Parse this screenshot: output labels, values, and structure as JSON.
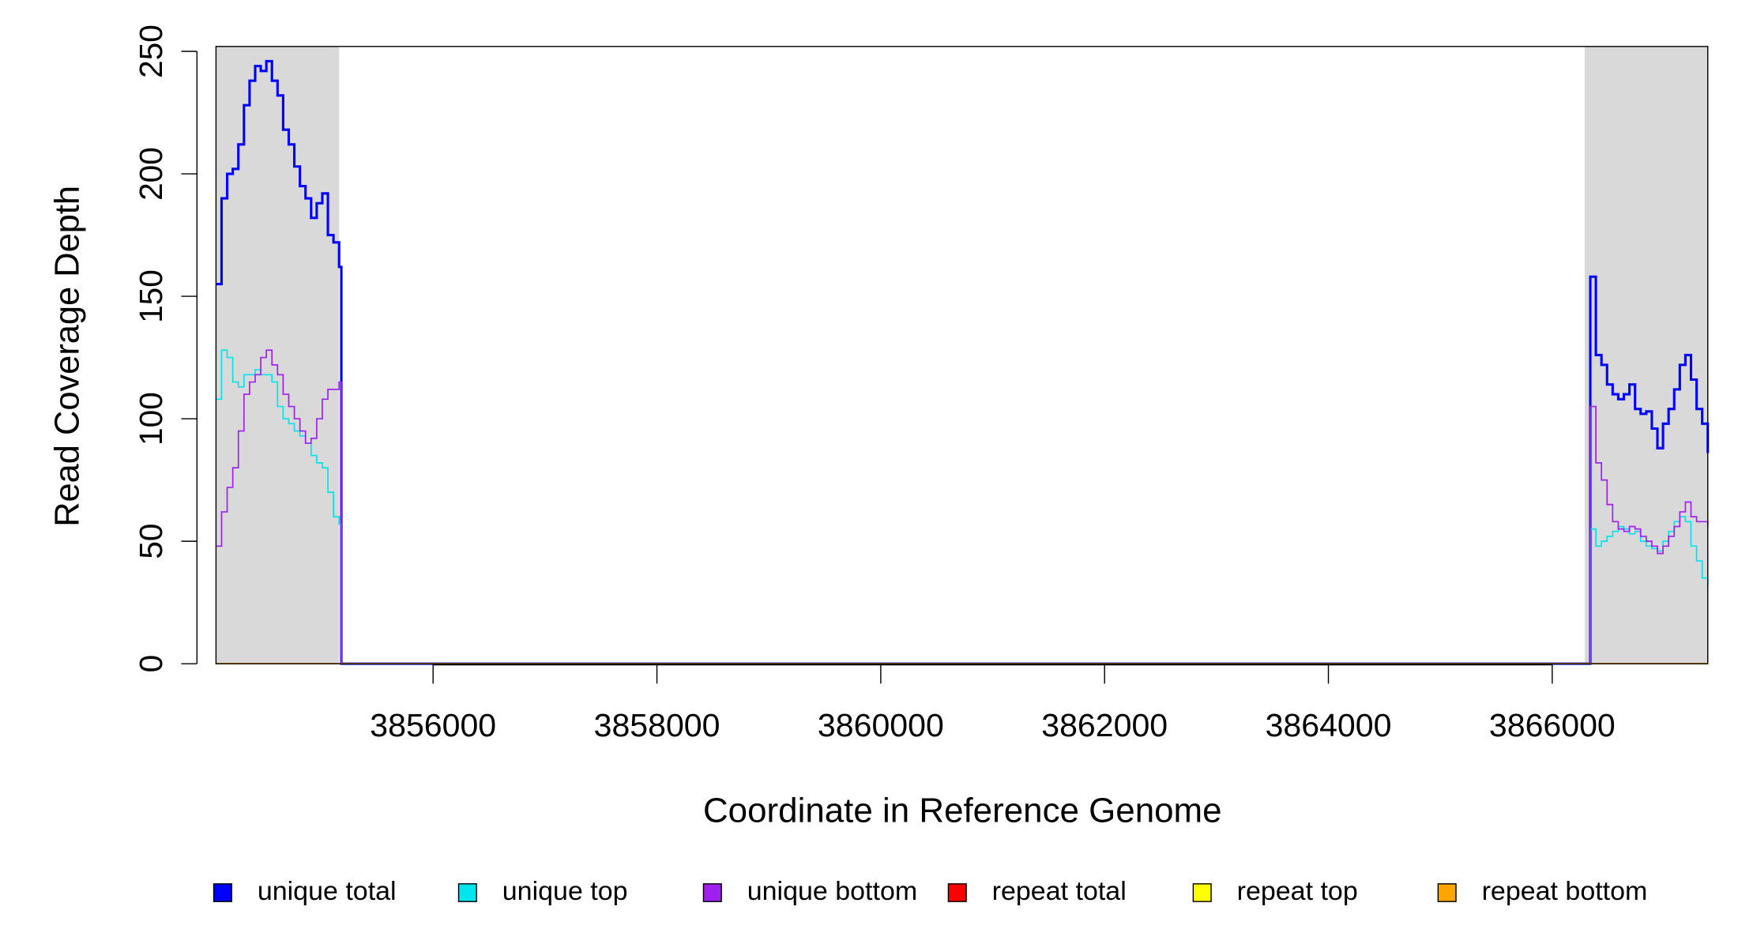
{
  "chart_data": {
    "type": "line",
    "step": true,
    "xlabel": "Coordinate in Reference Genome",
    "ylabel": "Read Coverage Depth",
    "xlim": [
      3854060,
      3867390
    ],
    "ylim": [
      0,
      252
    ],
    "xticks": [
      3856000,
      3858000,
      3860000,
      3862000,
      3864000,
      3866000
    ],
    "yticks": [
      0,
      50,
      100,
      150,
      200,
      250
    ],
    "shaded_regions": [
      [
        3854060,
        3855160
      ],
      [
        3866290,
        3867390
      ]
    ],
    "shade_color": "#d9d9d9",
    "x": [
      3854060,
      3854110,
      3854160,
      3854210,
      3854260,
      3854310,
      3854360,
      3854410,
      3854460,
      3854510,
      3854560,
      3854610,
      3854660,
      3854710,
      3854760,
      3854810,
      3854860,
      3854910,
      3854960,
      3855010,
      3855060,
      3855110,
      3855160,
      3855180,
      3866320,
      3866340,
      3866390,
      3866440,
      3866490,
      3866540,
      3866590,
      3866640,
      3866690,
      3866740,
      3866790,
      3866840,
      3866890,
      3866940,
      3866990,
      3867040,
      3867090,
      3867140,
      3867190,
      3867240,
      3867290,
      3867340,
      3867390
    ],
    "series": [
      {
        "name": "unique total",
        "color": "#0000ff",
        "width": 2.2,
        "values": [
          155,
          190,
          200,
          202,
          212,
          228,
          238,
          244,
          242,
          246,
          238,
          232,
          218,
          212,
          203,
          195,
          190,
          182,
          188,
          192,
          175,
          172,
          162,
          0,
          0,
          158,
          126,
          122,
          114,
          110,
          108,
          110,
          114,
          104,
          102,
          103,
          96,
          88,
          98,
          104,
          112,
          122,
          126,
          116,
          104,
          98,
          86
        ]
      },
      {
        "name": "unique top",
        "color": "#00e5ee",
        "width": 1.2,
        "values": [
          108,
          128,
          125,
          115,
          113,
          118,
          118,
          120,
          118,
          118,
          115,
          105,
          100,
          98,
          95,
          93,
          90,
          85,
          82,
          80,
          70,
          60,
          57,
          0,
          0,
          55,
          48,
          50,
          52,
          54,
          56,
          55,
          53,
          54,
          50,
          48,
          47,
          46,
          50,
          54,
          58,
          60,
          58,
          48,
          42,
          35,
          32
        ]
      },
      {
        "name": "unique bottom",
        "color": "#a020f0",
        "width": 1.2,
        "values": [
          48,
          62,
          72,
          80,
          95,
          110,
          115,
          118,
          125,
          128,
          122,
          118,
          110,
          105,
          100,
          95,
          90,
          92,
          100,
          108,
          112,
          112,
          115,
          0,
          0,
          105,
          82,
          75,
          65,
          58,
          55,
          54,
          56,
          55,
          52,
          50,
          48,
          45,
          48,
          52,
          56,
          62,
          66,
          60,
          58,
          58,
          56
        ]
      },
      {
        "name": "repeat total",
        "color": "#ff0000",
        "width": 1.2,
        "values": [
          0,
          0,
          0,
          0,
          0,
          0,
          0,
          0,
          0,
          0,
          0,
          0,
          0,
          0,
          0,
          0,
          0,
          0,
          0,
          0,
          0,
          0,
          0,
          0,
          0,
          0,
          0,
          0,
          0,
          0,
          0,
          0,
          0,
          0,
          0,
          0,
          0,
          0,
          0,
          0,
          0,
          0,
          0,
          0,
          0,
          0,
          0
        ]
      },
      {
        "name": "repeat top",
        "color": "#ffff00",
        "width": 1.2,
        "values": [
          0,
          0,
          0,
          0,
          0,
          0,
          0,
          0,
          0,
          0,
          0,
          0,
          0,
          0,
          0,
          0,
          0,
          0,
          0,
          0,
          0,
          0,
          0,
          0,
          0,
          0,
          0,
          0,
          0,
          0,
          0,
          0,
          0,
          0,
          0,
          0,
          0,
          0,
          0,
          0,
          0,
          0,
          0,
          0,
          0,
          0,
          0
        ]
      },
      {
        "name": "repeat bottom",
        "color": "#ffa500",
        "width": 1.2,
        "values": [
          0,
          0,
          0,
          0,
          0,
          0,
          0,
          0,
          0,
          0,
          0,
          0,
          0,
          0,
          0,
          0,
          0,
          0,
          0,
          0,
          0,
          0,
          0,
          0,
          0,
          0,
          0,
          0,
          0,
          0,
          0,
          0,
          0,
          0,
          0,
          0,
          0,
          0,
          0,
          0,
          0,
          0,
          0,
          0,
          0,
          0,
          0
        ]
      }
    ]
  }
}
